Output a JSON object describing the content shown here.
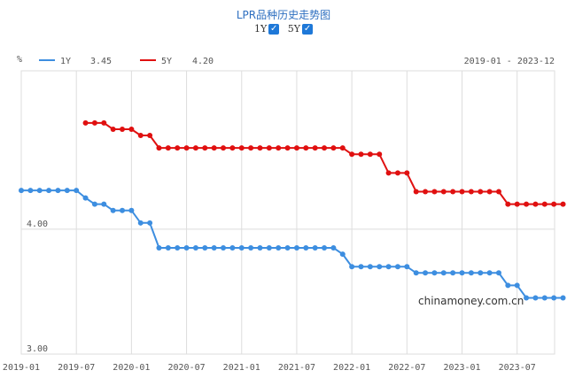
{
  "header": {
    "title": "LPR品种历史走势图",
    "toggles": [
      {
        "label": "1Y",
        "checked": true
      },
      {
        "label": "5Y",
        "checked": true
      }
    ]
  },
  "watermark": "chinamoney.com.cn",
  "colors": {
    "1Y": "#3d8ee0",
    "5Y": "#e01010",
    "grid": "#dddddd",
    "checkbox": "#1e78d8"
  },
  "chart_data": {
    "type": "line",
    "title": "LPR品种历史走势图",
    "ylabel": "%",
    "date_range_label": "2019-01 - 2023-12",
    "ylim": [
      3.0,
      4.95
    ],
    "x_ticks": [
      "2019-01",
      "2019-07",
      "2020-01",
      "2020-07",
      "2021-01",
      "2021-07",
      "2022-01",
      "2022-07",
      "2023-01",
      "2023-07"
    ],
    "y_ticks": [
      {
        "value": 3.0,
        "label": "3.00"
      },
      {
        "value": 4.0,
        "label": "4.00"
      }
    ],
    "legend": [
      {
        "name": "1Y",
        "value": "3.45"
      },
      {
        "name": "5Y",
        "value": "4.20"
      }
    ],
    "series": [
      {
        "name": "1Y",
        "points": [
          [
            "2019-01",
            4.31
          ],
          [
            "2019-02",
            4.31
          ],
          [
            "2019-03",
            4.31
          ],
          [
            "2019-04",
            4.31
          ],
          [
            "2019-05",
            4.31
          ],
          [
            "2019-06",
            4.31
          ],
          [
            "2019-07",
            4.31
          ],
          [
            "2019-08",
            4.25
          ],
          [
            "2019-09",
            4.2
          ],
          [
            "2019-10",
            4.2
          ],
          [
            "2019-11",
            4.15
          ],
          [
            "2019-12",
            4.15
          ],
          [
            "2020-01",
            4.15
          ],
          [
            "2020-02",
            4.05
          ],
          [
            "2020-03",
            4.05
          ],
          [
            "2020-04",
            3.85
          ],
          [
            "2020-05",
            3.85
          ],
          [
            "2020-06",
            3.85
          ],
          [
            "2020-07",
            3.85
          ],
          [
            "2020-08",
            3.85
          ],
          [
            "2020-09",
            3.85
          ],
          [
            "2020-10",
            3.85
          ],
          [
            "2020-11",
            3.85
          ],
          [
            "2020-12",
            3.85
          ],
          [
            "2021-01",
            3.85
          ],
          [
            "2021-02",
            3.85
          ],
          [
            "2021-03",
            3.85
          ],
          [
            "2021-04",
            3.85
          ],
          [
            "2021-05",
            3.85
          ],
          [
            "2021-06",
            3.85
          ],
          [
            "2021-07",
            3.85
          ],
          [
            "2021-08",
            3.85
          ],
          [
            "2021-09",
            3.85
          ],
          [
            "2021-10",
            3.85
          ],
          [
            "2021-11",
            3.85
          ],
          [
            "2021-12",
            3.8
          ],
          [
            "2022-01",
            3.7
          ],
          [
            "2022-02",
            3.7
          ],
          [
            "2022-03",
            3.7
          ],
          [
            "2022-04",
            3.7
          ],
          [
            "2022-05",
            3.7
          ],
          [
            "2022-06",
            3.7
          ],
          [
            "2022-07",
            3.7
          ],
          [
            "2022-08",
            3.65
          ],
          [
            "2022-09",
            3.65
          ],
          [
            "2022-10",
            3.65
          ],
          [
            "2022-11",
            3.65
          ],
          [
            "2022-12",
            3.65
          ],
          [
            "2023-01",
            3.65
          ],
          [
            "2023-02",
            3.65
          ],
          [
            "2023-03",
            3.65
          ],
          [
            "2023-04",
            3.65
          ],
          [
            "2023-05",
            3.65
          ],
          [
            "2023-06",
            3.55
          ],
          [
            "2023-07",
            3.55
          ],
          [
            "2023-08",
            3.45
          ],
          [
            "2023-09",
            3.45
          ],
          [
            "2023-10",
            3.45
          ],
          [
            "2023-11",
            3.45
          ],
          [
            "2023-12",
            3.45
          ]
        ]
      },
      {
        "name": "5Y",
        "points": [
          [
            "2019-08",
            4.85
          ],
          [
            "2019-09",
            4.85
          ],
          [
            "2019-10",
            4.85
          ],
          [
            "2019-11",
            4.8
          ],
          [
            "2019-12",
            4.8
          ],
          [
            "2020-01",
            4.8
          ],
          [
            "2020-02",
            4.75
          ],
          [
            "2020-03",
            4.75
          ],
          [
            "2020-04",
            4.65
          ],
          [
            "2020-05",
            4.65
          ],
          [
            "2020-06",
            4.65
          ],
          [
            "2020-07",
            4.65
          ],
          [
            "2020-08",
            4.65
          ],
          [
            "2020-09",
            4.65
          ],
          [
            "2020-10",
            4.65
          ],
          [
            "2020-11",
            4.65
          ],
          [
            "2020-12",
            4.65
          ],
          [
            "2021-01",
            4.65
          ],
          [
            "2021-02",
            4.65
          ],
          [
            "2021-03",
            4.65
          ],
          [
            "2021-04",
            4.65
          ],
          [
            "2021-05",
            4.65
          ],
          [
            "2021-06",
            4.65
          ],
          [
            "2021-07",
            4.65
          ],
          [
            "2021-08",
            4.65
          ],
          [
            "2021-09",
            4.65
          ],
          [
            "2021-10",
            4.65
          ],
          [
            "2021-11",
            4.65
          ],
          [
            "2021-12",
            4.65
          ],
          [
            "2022-01",
            4.6
          ],
          [
            "2022-02",
            4.6
          ],
          [
            "2022-03",
            4.6
          ],
          [
            "2022-04",
            4.6
          ],
          [
            "2022-05",
            4.45
          ],
          [
            "2022-06",
            4.45
          ],
          [
            "2022-07",
            4.45
          ],
          [
            "2022-08",
            4.3
          ],
          [
            "2022-09",
            4.3
          ],
          [
            "2022-10",
            4.3
          ],
          [
            "2022-11",
            4.3
          ],
          [
            "2022-12",
            4.3
          ],
          [
            "2023-01",
            4.3
          ],
          [
            "2023-02",
            4.3
          ],
          [
            "2023-03",
            4.3
          ],
          [
            "2023-04",
            4.3
          ],
          [
            "2023-05",
            4.3
          ],
          [
            "2023-06",
            4.2
          ],
          [
            "2023-07",
            4.2
          ],
          [
            "2023-08",
            4.2
          ],
          [
            "2023-09",
            4.2
          ],
          [
            "2023-10",
            4.2
          ],
          [
            "2023-11",
            4.2
          ],
          [
            "2023-12",
            4.2
          ]
        ]
      }
    ]
  }
}
